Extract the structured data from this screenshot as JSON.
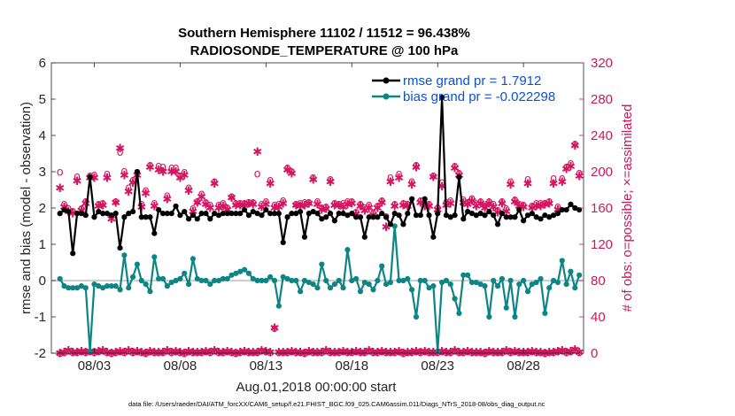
{
  "chart_data": {
    "type": "line",
    "title": "Southern Hemisphere 11102 / 11512 = 96.438%",
    "subtitle": "RADIOSONDE_TEMPERATURE @ 100 hPa",
    "xlabel": "Aug.01,2018 00:00:00 start",
    "ylabel": "rmse and bias (model - observation)",
    "ylabel_right": "# of obs: o=possible; ×=assimilated",
    "footer": "data file: /Users/raeder/DAI/ATM_forcXX/CAM6_setup/f.e21.FHIST_BGC.f09_025.CAM6assim.011/Diags_NTrS_2018-08/obs_diag_output.nc",
    "x_day_range": [
      0.5,
      31.5
    ],
    "ylim": [
      -2,
      6
    ],
    "ylim_right": [
      0,
      320
    ],
    "x_ticks": [
      {
        "day": 3,
        "label": "08/03"
      },
      {
        "day": 8,
        "label": "08/08"
      },
      {
        "day": 13,
        "label": "08/13"
      },
      {
        "day": 18,
        "label": "08/18"
      },
      {
        "day": 23,
        "label": "08/23"
      },
      {
        "day": 28,
        "label": "08/28"
      }
    ],
    "y_ticks": [
      "-2",
      "-1",
      "0",
      "1",
      "2",
      "3",
      "4",
      "5",
      "6"
    ],
    "y_ticks_right": [
      "0",
      "40",
      "80",
      "120",
      "160",
      "200",
      "240",
      "280",
      "320"
    ],
    "legend": {
      "position": "top-right",
      "entries": [
        "rmse grand pr = 1.7912",
        "bias grand pr = -0.022298"
      ]
    },
    "colors": {
      "rmse": "#000000",
      "bias": "#0d8585",
      "obs": "#d6145f",
      "legend_text": "#0a50d8",
      "zero_line": "#bebebe"
    },
    "x_days": [
      1.0,
      1.25,
      1.5,
      1.75,
      2.0,
      2.25,
      2.5,
      2.75,
      3.0,
      3.25,
      3.5,
      3.75,
      4.0,
      4.25,
      4.5,
      4.75,
      5.0,
      5.25,
      5.5,
      5.75,
      6.0,
      6.25,
      6.5,
      6.75,
      7.0,
      7.25,
      7.5,
      7.75,
      8.0,
      8.25,
      8.5,
      8.75,
      9.0,
      9.25,
      9.5,
      9.75,
      10.0,
      10.25,
      10.5,
      10.75,
      11.0,
      11.25,
      11.5,
      11.75,
      12.0,
      12.25,
      12.5,
      12.75,
      13.0,
      13.25,
      13.5,
      13.75,
      14.0,
      14.25,
      14.5,
      14.75,
      15.0,
      15.25,
      15.5,
      15.75,
      16.0,
      16.25,
      16.5,
      16.75,
      17.0,
      17.25,
      17.5,
      17.75,
      18.0,
      18.25,
      18.5,
      18.75,
      19.0,
      19.25,
      19.5,
      19.75,
      20.0,
      20.25,
      20.5,
      20.75,
      21.0,
      21.25,
      21.5,
      21.75,
      22.0,
      22.25,
      22.5,
      22.75,
      23.0,
      23.25,
      23.5,
      23.75,
      24.0,
      24.25,
      24.5,
      24.75,
      25.0,
      25.25,
      25.5,
      25.75,
      26.0,
      26.25,
      26.5,
      26.75,
      27.0,
      27.25,
      27.5,
      27.75,
      28.0,
      28.25,
      28.5,
      28.75,
      29.0,
      29.25,
      29.5,
      29.75,
      30.0,
      30.25,
      30.5,
      30.75,
      31.0,
      31.25
    ],
    "series": [
      {
        "name": "rmse",
        "values": [
          1.85,
          1.95,
          1.9,
          0.75,
          1.85,
          1.85,
          1.8,
          2.85,
          1.75,
          1.9,
          1.85,
          1.85,
          1.8,
          1.85,
          0.9,
          1.75,
          1.85,
          1.9,
          3.0,
          1.75,
          1.75,
          1.75,
          1.3,
          1.95,
          1.85,
          1.85,
          1.85,
          2.05,
          1.8,
          1.9,
          1.7,
          1.8,
          1.7,
          1.85,
          1.85,
          1.7,
          1.85,
          1.8,
          1.85,
          1.85,
          1.85,
          1.85,
          1.85,
          1.95,
          1.8,
          1.9,
          1.85,
          1.8,
          1.95,
          1.85,
          1.85,
          1.85,
          1.05,
          1.75,
          1.85,
          1.85,
          1.9,
          1.2,
          1.85,
          1.9,
          1.85,
          1.7,
          1.75,
          1.85,
          1.65,
          1.85,
          1.85,
          1.8,
          1.85,
          1.75,
          1.75,
          1.2,
          1.75,
          1.75,
          1.75,
          1.85,
          1.75,
          1.55,
          1.85,
          1.8,
          1.55,
          1.85,
          2.25,
          1.8,
          1.8,
          2.25,
          1.8,
          1.2,
          1.85,
          5.05,
          1.8,
          1.75,
          1.8,
          2.85,
          1.7,
          1.9,
          1.85,
          1.8,
          1.85,
          1.8,
          1.9,
          1.8,
          1.55,
          1.85,
          1.75,
          1.75,
          1.75,
          1.95,
          1.65,
          1.8,
          1.85,
          1.75,
          1.7,
          1.8,
          1.75,
          1.8,
          1.85,
          1.95,
          1.95,
          2.1,
          2.0,
          1.95
        ]
      },
      {
        "name": "bias",
        "values": [
          0.05,
          -0.15,
          -0.2,
          -0.2,
          -0.2,
          -0.15,
          -0.2,
          -1.95,
          -0.1,
          -0.15,
          -0.2,
          -0.15,
          -0.15,
          -0.15,
          -0.25,
          0.7,
          -0.2,
          0.1,
          0.45,
          0.0,
          -0.1,
          -0.3,
          0.65,
          0.05,
          0.05,
          -0.15,
          -0.05,
          0.0,
          0.05,
          0.2,
          -0.1,
          0.6,
          0.05,
          0.0,
          0.0,
          -0.1,
          0.0,
          0.0,
          0.05,
          0.05,
          0.15,
          0.2,
          0.25,
          0.3,
          0.2,
          0.05,
          0.0,
          0.0,
          0.0,
          0.1,
          0.0,
          -0.7,
          0.1,
          0.05,
          0.0,
          0.0,
          -0.3,
          0.0,
          -0.05,
          -0.1,
          -0.2,
          0.45,
          0.0,
          -0.2,
          -0.1,
          0.0,
          -0.2,
          0.85,
          0.0,
          0.05,
          -0.3,
          -0.05,
          -0.1,
          -0.25,
          0.0,
          0.4,
          -0.1,
          -0.05,
          1.5,
          0.0,
          0.0,
          0.05,
          -0.25,
          -1.0,
          0.0,
          0.0,
          -0.2,
          -0.15,
          -1.95,
          -0.05,
          0.0,
          -0.1,
          -0.5,
          -0.9,
          0.15,
          0.15,
          -0.05,
          -0.05,
          -0.1,
          -0.15,
          -1.0,
          0.0,
          -0.15,
          0.05,
          -0.75,
          0.0,
          -1.0,
          -0.1,
          0.0,
          -0.3,
          -0.1,
          -0.05,
          0.05,
          -0.9,
          -0.2,
          0.0,
          -0.05,
          0.55,
          -0.1,
          0.25,
          -0.2,
          0.15
        ]
      },
      {
        "name": "obs_possible",
        "values": [
          200,
          165,
          160,
          157,
          195,
          160,
          168,
          196,
          197,
          165,
          166,
          198,
          152,
          168,
          222,
          201,
          183,
          191,
          199,
          165,
          180,
          208,
          166,
          207,
          206,
          174,
          205,
          205,
          196,
          200,
          183,
          160,
          168,
          176,
          167,
          164,
          190,
          164,
          166,
          161,
          173,
          166,
          166,
          166,
          167,
          167,
          198,
          165,
          168,
          191,
          164,
          165,
          169,
          205,
          201,
          165,
          166,
          167,
          167,
          194,
          168,
          161,
          162,
          192,
          166,
          165,
          166,
          168,
          168,
          156,
          165,
          161,
          164,
          155,
          163,
          169,
          151,
          194,
          165,
          198,
          166,
          165,
          190,
          208,
          169,
          166,
          165,
          196,
          161,
          189,
          167,
          169,
          207,
          199,
          170,
          167,
          171,
          166,
          168,
          163,
          168,
          165,
          158,
          168,
          160,
          190,
          170,
          165,
          164,
          192,
          163,
          166,
          166,
          166,
          168,
          193,
          162,
          193,
          206,
          210,
          231,
          199
        ]
      },
      {
        "name": "obs_assimilated",
        "values": [
          182,
          161,
          156,
          154,
          190,
          157,
          165,
          193,
          193,
          162,
          163,
          193,
          148,
          166,
          226,
          196,
          178,
          188,
          196,
          161,
          176,
          205,
          162,
          202,
          200,
          170,
          200,
          200,
          193,
          196,
          179,
          156,
          166,
          172,
          164,
          160,
          187,
          160,
          162,
          158,
          171,
          163,
          163,
          163,
          165,
          164,
          222,
          161,
          164,
          187,
          160,
          161,
          165,
          202,
          198,
          163,
          162,
          163,
          165,
          191,
          164,
          158,
          159,
          189,
          163,
          163,
          161,
          164,
          165,
          153,
          162,
          157,
          160,
          152,
          160,
          166,
          139,
          189,
          162,
          193,
          163,
          162,
          186,
          205,
          166,
          162,
          162,
          194,
          158,
          184,
          163,
          165,
          204,
          196,
          166,
          164,
          168,
          162,
          165,
          160,
          165,
          161,
          155,
          165,
          156,
          186,
          167,
          162,
          161,
          187,
          160,
          162,
          162,
          164,
          165,
          187,
          158,
          189,
          203,
          206,
          229,
          195
        ]
      },
      {
        "name": "obs_bottom_possible",
        "values": [
          0,
          1,
          3,
          1,
          1,
          2,
          1,
          2,
          1,
          2,
          3,
          1,
          0,
          1,
          2,
          1,
          3,
          1,
          2,
          1,
          0,
          2,
          1,
          1,
          1,
          3,
          1,
          2,
          1,
          0,
          2,
          1,
          1,
          1,
          2,
          1,
          3,
          1,
          1,
          2,
          1,
          0,
          1,
          2,
          1,
          1,
          1,
          3,
          2,
          1,
          28,
          1,
          1,
          1,
          2,
          1,
          1,
          0,
          2,
          1,
          1,
          1,
          3,
          1,
          1,
          1,
          2,
          1,
          1,
          2,
          1,
          1,
          3,
          1,
          1,
          2,
          1,
          1,
          1,
          2,
          0,
          1,
          1,
          2,
          1,
          2,
          1,
          1,
          1,
          2,
          1,
          1,
          3,
          1,
          1,
          2,
          1,
          1,
          1,
          0,
          2,
          1,
          1,
          1,
          3,
          1,
          2,
          1,
          1,
          1,
          2,
          1,
          1,
          0,
          1,
          1,
          2,
          3,
          1,
          2,
          4,
          1
        ]
      },
      {
        "name": "obs_bottom_assimilated",
        "values": [
          0,
          1,
          3,
          1,
          1,
          2,
          1,
          2,
          1,
          2,
          3,
          1,
          0,
          1,
          2,
          1,
          3,
          1,
          2,
          1,
          0,
          2,
          1,
          1,
          1,
          3,
          1,
          2,
          1,
          0,
          2,
          1,
          1,
          1,
          2,
          1,
          3,
          1,
          1,
          2,
          1,
          0,
          1,
          2,
          1,
          1,
          1,
          3,
          2,
          1,
          28,
          1,
          1,
          1,
          2,
          1,
          1,
          0,
          2,
          1,
          1,
          1,
          3,
          1,
          1,
          1,
          2,
          1,
          1,
          2,
          1,
          1,
          3,
          1,
          1,
          2,
          1,
          1,
          1,
          2,
          0,
          1,
          1,
          2,
          1,
          2,
          1,
          1,
          1,
          2,
          1,
          1,
          3,
          1,
          1,
          2,
          1,
          1,
          1,
          0,
          2,
          1,
          1,
          1,
          3,
          1,
          2,
          1,
          1,
          1,
          2,
          1,
          1,
          0,
          1,
          1,
          2,
          3,
          1,
          2,
          4,
          1
        ]
      }
    ]
  }
}
